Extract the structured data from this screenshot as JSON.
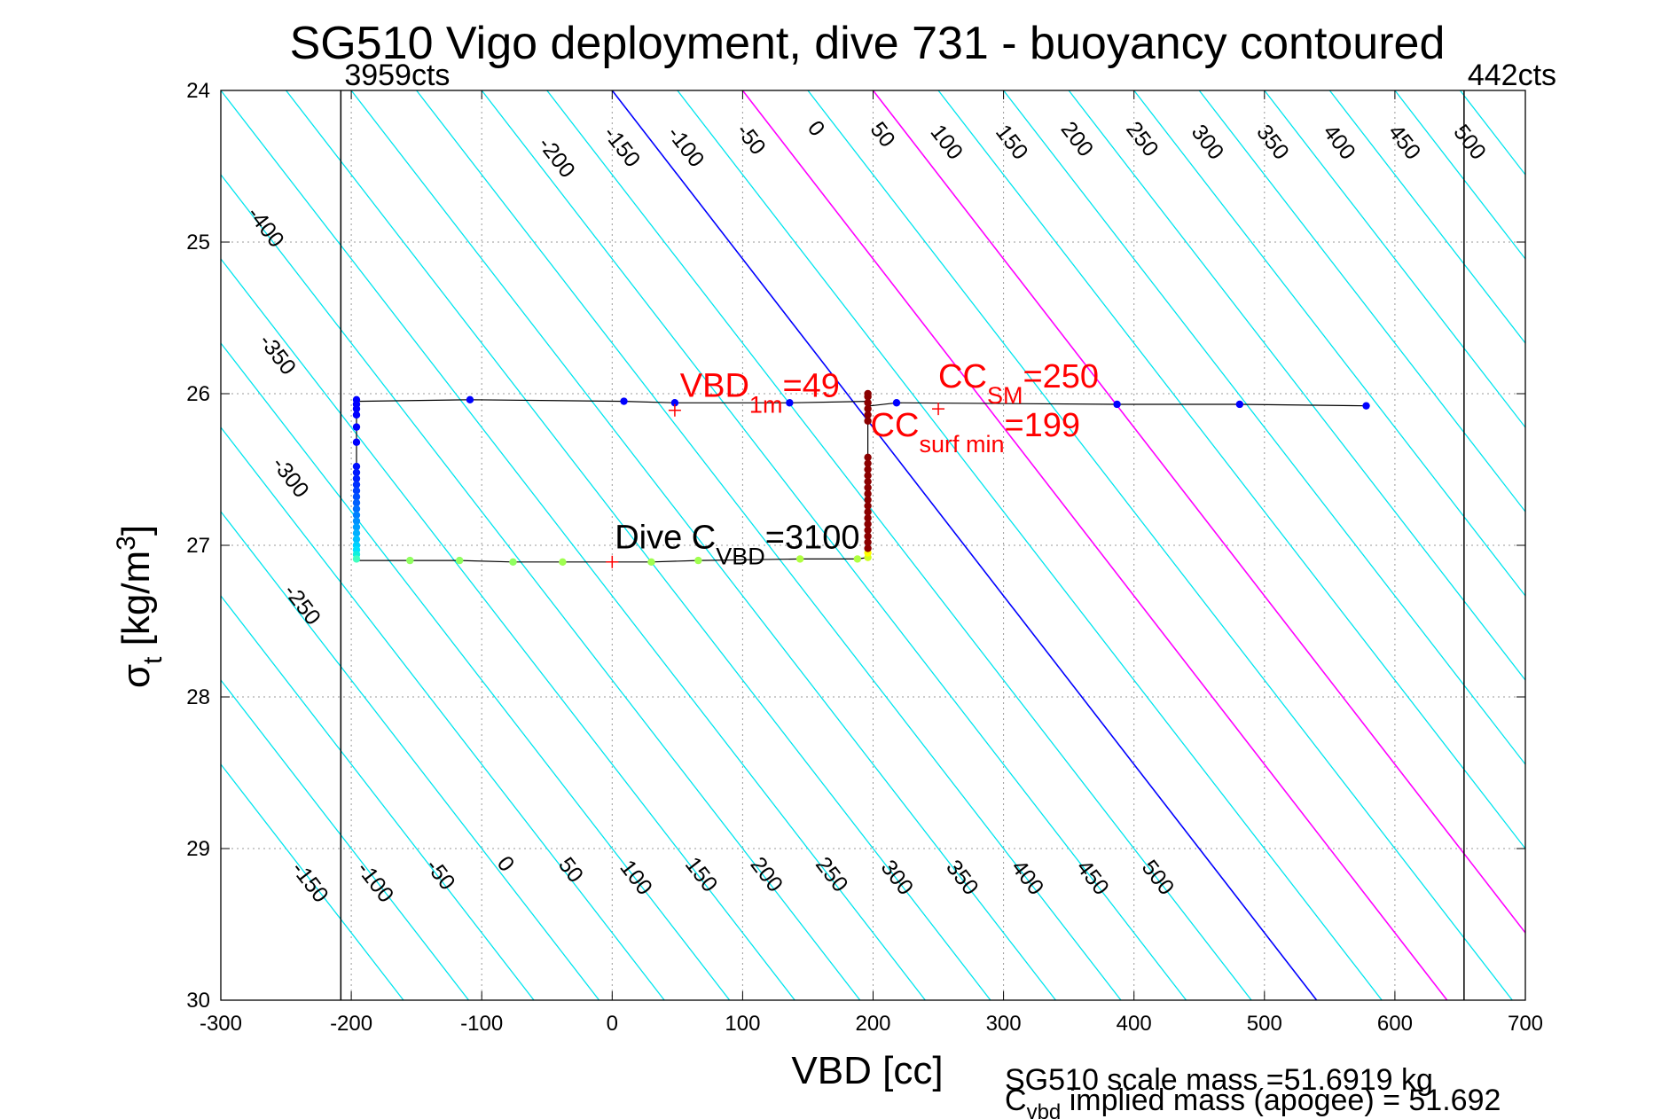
{
  "chart_data": {
    "type": "scatter",
    "title": "SG510 Vigo deployment, dive 731 - buoyancy contoured",
    "xlabel": "VBD [cc]",
    "ylabel": {
      "base": "σ",
      "sub": "t",
      "unit": " [kg/m",
      "sup": "3",
      "close": "]"
    },
    "xlim": [
      -300,
      700
    ],
    "ylim": [
      24,
      30
    ],
    "y_reversed": true,
    "xticks": [
      -300,
      -200,
      -100,
      0,
      100,
      200,
      300,
      400,
      500,
      600,
      700
    ],
    "yticks": [
      24,
      25,
      26,
      27,
      28,
      29,
      30
    ],
    "grid": true,
    "vlines": [
      {
        "x": -208,
        "label": "3959cts",
        "color": "#000000"
      },
      {
        "x": 653,
        "label": "442cts",
        "color": "#000000"
      }
    ],
    "contours": {
      "slope_cc_per_sigma": 90,
      "line_color": "#00e5ee",
      "special": [
        {
          "value": 0,
          "color": "#0000ff"
        },
        {
          "value": 100,
          "color": "#ff00ff"
        },
        {
          "value": 200,
          "color": "#ff00ff"
        }
      ],
      "upper_labels": [
        {
          "text": "-400",
          "x": -270,
          "y": 24.93
        },
        {
          "text": "-350",
          "x": -261,
          "y": 25.77
        },
        {
          "text": "-300",
          "x": -251,
          "y": 26.58
        },
        {
          "text": "-250",
          "x": -242,
          "y": 27.42
        },
        {
          "text": "-200",
          "x": -47,
          "y": 24.47
        },
        {
          "text": "-150",
          "x": 3,
          "y": 24.4
        },
        {
          "text": "-100",
          "x": 52,
          "y": 24.4
        },
        {
          "text": "-50",
          "x": 102,
          "y": 24.35
        },
        {
          "text": "0",
          "x": 152,
          "y": 24.28
        },
        {
          "text": "50",
          "x": 203,
          "y": 24.32
        },
        {
          "text": "100",
          "x": 252,
          "y": 24.37
        },
        {
          "text": "150",
          "x": 302,
          "y": 24.37
        },
        {
          "text": "200",
          "x": 352,
          "y": 24.35
        },
        {
          "text": "250",
          "x": 402,
          "y": 24.35
        },
        {
          "text": "300",
          "x": 452,
          "y": 24.37
        },
        {
          "text": "350",
          "x": 502,
          "y": 24.37
        },
        {
          "text": "400",
          "x": 553,
          "y": 24.37
        },
        {
          "text": "450",
          "x": 603,
          "y": 24.37
        },
        {
          "text": "500",
          "x": 653,
          "y": 24.37
        }
      ],
      "lower_labels": [
        {
          "text": "-150",
          "x": -236,
          "y": 29.25
        },
        {
          "text": "-100",
          "x": -186,
          "y": 29.25
        },
        {
          "text": "-50",
          "x": -136,
          "y": 29.2
        },
        {
          "text": "0",
          "x": -86,
          "y": 29.13
        },
        {
          "text": "50",
          "x": -36,
          "y": 29.17
        },
        {
          "text": "100",
          "x": 14,
          "y": 29.22
        },
        {
          "text": "150",
          "x": 64,
          "y": 29.2
        },
        {
          "text": "200",
          "x": 114,
          "y": 29.2
        },
        {
          "text": "250",
          "x": 164,
          "y": 29.2
        },
        {
          "text": "300",
          "x": 214,
          "y": 29.22
        },
        {
          "text": "350",
          "x": 264,
          "y": 29.22
        },
        {
          "text": "400",
          "x": 314,
          "y": 29.22
        },
        {
          "text": "450",
          "x": 364,
          "y": 29.22
        },
        {
          "text": "500",
          "x": 414,
          "y": 29.22
        }
      ]
    },
    "trace": [
      [
        -196,
        27.1
      ],
      [
        -196,
        26.05
      ],
      [
        -109,
        26.04
      ],
      [
        9,
        26.05
      ],
      [
        48,
        26.06
      ],
      [
        136,
        26.06
      ],
      [
        196,
        26.05
      ],
      [
        196,
        26.08
      ],
      [
        198,
        26.08
      ],
      [
        218,
        26.06
      ],
      [
        387,
        26.07
      ],
      [
        481,
        26.07
      ],
      [
        578,
        26.08
      ],
      [
        578,
        26.08
      ]
    ],
    "trace_bottom": [
      [
        -196,
        27.1
      ],
      [
        -155,
        27.1
      ],
      [
        -117,
        27.1
      ],
      [
        -76,
        27.11
      ],
      [
        -38,
        27.11
      ],
      [
        0,
        27.11
      ],
      [
        30,
        27.11
      ],
      [
        66,
        27.1
      ],
      [
        144,
        27.09
      ],
      [
        188,
        27.09
      ],
      [
        196,
        27.08
      ],
      [
        196,
        26.08
      ]
    ],
    "points": [
      {
        "x": -109,
        "y": 26.04,
        "color": "#0000ff"
      },
      {
        "x": 9,
        "y": 26.05,
        "color": "#0000ff"
      },
      {
        "x": 48,
        "y": 26.06,
        "color": "#0000ff"
      },
      {
        "x": 136,
        "y": 26.06,
        "color": "#0000ff"
      },
      {
        "x": 218,
        "y": 26.06,
        "color": "#0000ff"
      },
      {
        "x": 387,
        "y": 26.07,
        "color": "#0000ff"
      },
      {
        "x": 481,
        "y": 26.07,
        "color": "#0000ff"
      },
      {
        "x": 578,
        "y": 26.08,
        "color": "#0000ff"
      },
      {
        "x": -196,
        "y": 26.04,
        "color": "#0000ff"
      },
      {
        "x": -196,
        "y": 26.07,
        "color": "#0000ff"
      },
      {
        "x": -196,
        "y": 26.1,
        "color": "#0000ff"
      },
      {
        "x": -196,
        "y": 26.14,
        "color": "#0000ff"
      },
      {
        "x": -196,
        "y": 26.22,
        "color": "#0000ff"
      },
      {
        "x": -196,
        "y": 26.32,
        "color": "#0000ff"
      },
      {
        "x": -196,
        "y": 26.48,
        "color": "#0010ff"
      },
      {
        "x": -196,
        "y": 26.52,
        "color": "#0018ff"
      },
      {
        "x": -196,
        "y": 26.56,
        "color": "#0020ff"
      },
      {
        "x": -196,
        "y": 26.6,
        "color": "#0030ff"
      },
      {
        "x": -196,
        "y": 26.64,
        "color": "#0040ff"
      },
      {
        "x": -196,
        "y": 26.68,
        "color": "#0050ff"
      },
      {
        "x": -196,
        "y": 26.72,
        "color": "#0060ff"
      },
      {
        "x": -196,
        "y": 26.76,
        "color": "#0070ff"
      },
      {
        "x": -196,
        "y": 26.8,
        "color": "#0080ff"
      },
      {
        "x": -196,
        "y": 26.84,
        "color": "#0090ff"
      },
      {
        "x": -196,
        "y": 26.88,
        "color": "#00a0ff"
      },
      {
        "x": -196,
        "y": 26.92,
        "color": "#00b0ff"
      },
      {
        "x": -196,
        "y": 26.96,
        "color": "#00c0ff"
      },
      {
        "x": -196,
        "y": 27.0,
        "color": "#00d0ff"
      },
      {
        "x": -196,
        "y": 27.03,
        "color": "#00e0ff"
      },
      {
        "x": -196,
        "y": 27.06,
        "color": "#10f0e0"
      },
      {
        "x": -196,
        "y": 27.09,
        "color": "#40ffc0"
      },
      {
        "x": -155,
        "y": 27.1,
        "color": "#90ff60"
      },
      {
        "x": -117,
        "y": 27.1,
        "color": "#90ff60"
      },
      {
        "x": -76,
        "y": 27.11,
        "color": "#90ff60"
      },
      {
        "x": -38,
        "y": 27.11,
        "color": "#a0ff50"
      },
      {
        "x": 30,
        "y": 27.11,
        "color": "#a0ff50"
      },
      {
        "x": 66,
        "y": 27.1,
        "color": "#a0ff50"
      },
      {
        "x": 144,
        "y": 27.09,
        "color": "#b0ff40"
      },
      {
        "x": 188,
        "y": 27.09,
        "color": "#b0ff40"
      },
      {
        "x": 196,
        "y": 27.08,
        "color": "#d0ff20"
      },
      {
        "x": 196,
        "y": 27.05,
        "color": "#ffff00"
      },
      {
        "x": 196,
        "y": 27.02,
        "color": "#8b0000"
      },
      {
        "x": 196,
        "y": 26.98,
        "color": "#8b0000"
      },
      {
        "x": 196,
        "y": 26.94,
        "color": "#8b0000"
      },
      {
        "x": 196,
        "y": 26.9,
        "color": "#8b0000"
      },
      {
        "x": 196,
        "y": 26.86,
        "color": "#8b0000"
      },
      {
        "x": 196,
        "y": 26.82,
        "color": "#8b0000"
      },
      {
        "x": 196,
        "y": 26.78,
        "color": "#8b0000"
      },
      {
        "x": 196,
        "y": 26.74,
        "color": "#8b0000"
      },
      {
        "x": 196,
        "y": 26.7,
        "color": "#8b0000"
      },
      {
        "x": 196,
        "y": 26.66,
        "color": "#8b0000"
      },
      {
        "x": 196,
        "y": 26.62,
        "color": "#8b0000"
      },
      {
        "x": 196,
        "y": 26.58,
        "color": "#8b0000"
      },
      {
        "x": 196,
        "y": 26.54,
        "color": "#8b0000"
      },
      {
        "x": 196,
        "y": 26.5,
        "color": "#8b0000"
      },
      {
        "x": 196,
        "y": 26.46,
        "color": "#8b0000"
      },
      {
        "x": 196,
        "y": 26.42,
        "color": "#8b0000"
      },
      {
        "x": 196,
        "y": 26.18,
        "color": "#8b0000"
      },
      {
        "x": 196,
        "y": 26.14,
        "color": "#8b0000"
      },
      {
        "x": 196,
        "y": 26.1,
        "color": "#8b0000"
      },
      {
        "x": 196,
        "y": 26.06,
        "color": "#8b0000"
      },
      {
        "x": 196,
        "y": 26.02,
        "color": "#8b0000"
      },
      {
        "x": 196,
        "y": 26.0,
        "color": "#8b0000"
      }
    ],
    "markers": [
      {
        "x": 48,
        "y": 26.11,
        "color": "#ff0000"
      },
      {
        "x": 250,
        "y": 26.1,
        "color": "#ff0000"
      },
      {
        "x": 0,
        "y": 27.11,
        "color": "#ff0000"
      }
    ],
    "annotations": [
      {
        "parts": [
          "VBD",
          "1m",
          "=49"
        ],
        "x": 52,
        "y": 26.02,
        "color": "#ff0000"
      },
      {
        "parts": [
          "CC",
          "SM",
          "=250"
        ],
        "x": 250,
        "y": 25.96,
        "color": "#ff0000"
      },
      {
        "parts": [
          "CC",
          "surf min",
          "=199"
        ],
        "x": 198,
        "y": 26.28,
        "color": "#ff0000"
      },
      {
        "parts": [
          "Dive C",
          "VBD",
          "=3100"
        ],
        "x": 2,
        "y": 27.02,
        "color": "#000000"
      }
    ],
    "footer": {
      "line1": "SG510 scale mass =51.6919 kg",
      "line2_main": "C",
      "line2_sub": "vbd",
      "line2_rest": " implied mass (apogee) = 51.692"
    }
  }
}
